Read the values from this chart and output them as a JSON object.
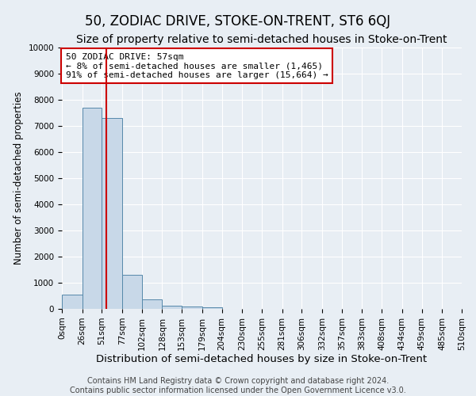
{
  "title": "50, ZODIAC DRIVE, STOKE-ON-TRENT, ST6 6QJ",
  "subtitle": "Size of property relative to semi-detached houses in Stoke-on-Trent",
  "xlabel": "Distribution of semi-detached houses by size in Stoke-on-Trent",
  "ylabel": "Number of semi-detached properties",
  "footer_line1": "Contains HM Land Registry data © Crown copyright and database right 2024.",
  "footer_line2": "Contains public sector information licensed under the Open Government Licence v3.0.",
  "annotation_title": "50 ZODIAC DRIVE: 57sqm",
  "annotation_line1": "← 8% of semi-detached houses are smaller (1,465)",
  "annotation_line2": "91% of semi-detached houses are larger (15,664) →",
  "property_size": 57,
  "bin_edges": [
    0,
    26,
    51,
    77,
    102,
    128,
    153,
    179,
    204,
    230,
    255,
    281,
    306,
    332,
    357,
    383,
    408,
    434,
    459,
    485,
    510
  ],
  "bin_labels": [
    "0sqm",
    "26sqm",
    "51sqm",
    "77sqm",
    "102sqm",
    "128sqm",
    "153sqm",
    "179sqm",
    "204sqm",
    "230sqm",
    "255sqm",
    "281sqm",
    "306sqm",
    "332sqm",
    "357sqm",
    "383sqm",
    "408sqm",
    "434sqm",
    "459sqm",
    "485sqm",
    "510sqm"
  ],
  "bar_heights": [
    550,
    7700,
    7300,
    1300,
    350,
    130,
    80,
    60,
    0,
    0,
    0,
    0,
    0,
    0,
    0,
    0,
    0,
    0,
    0,
    0
  ],
  "bar_color": "#c8d8e8",
  "bar_edgecolor": "#5588aa",
  "vline_color": "#cc0000",
  "vline_x": 57,
  "ylim": [
    0,
    10000
  ],
  "yticks": [
    0,
    1000,
    2000,
    3000,
    4000,
    5000,
    6000,
    7000,
    8000,
    9000,
    10000
  ],
  "background_color": "#e8eef4",
  "annotation_box_color": "#ffffff",
  "annotation_box_edgecolor": "#cc0000",
  "title_fontsize": 12,
  "subtitle_fontsize": 10,
  "xlabel_fontsize": 9.5,
  "ylabel_fontsize": 8.5,
  "tick_fontsize": 7.5,
  "annotation_fontsize": 8,
  "footer_fontsize": 7
}
